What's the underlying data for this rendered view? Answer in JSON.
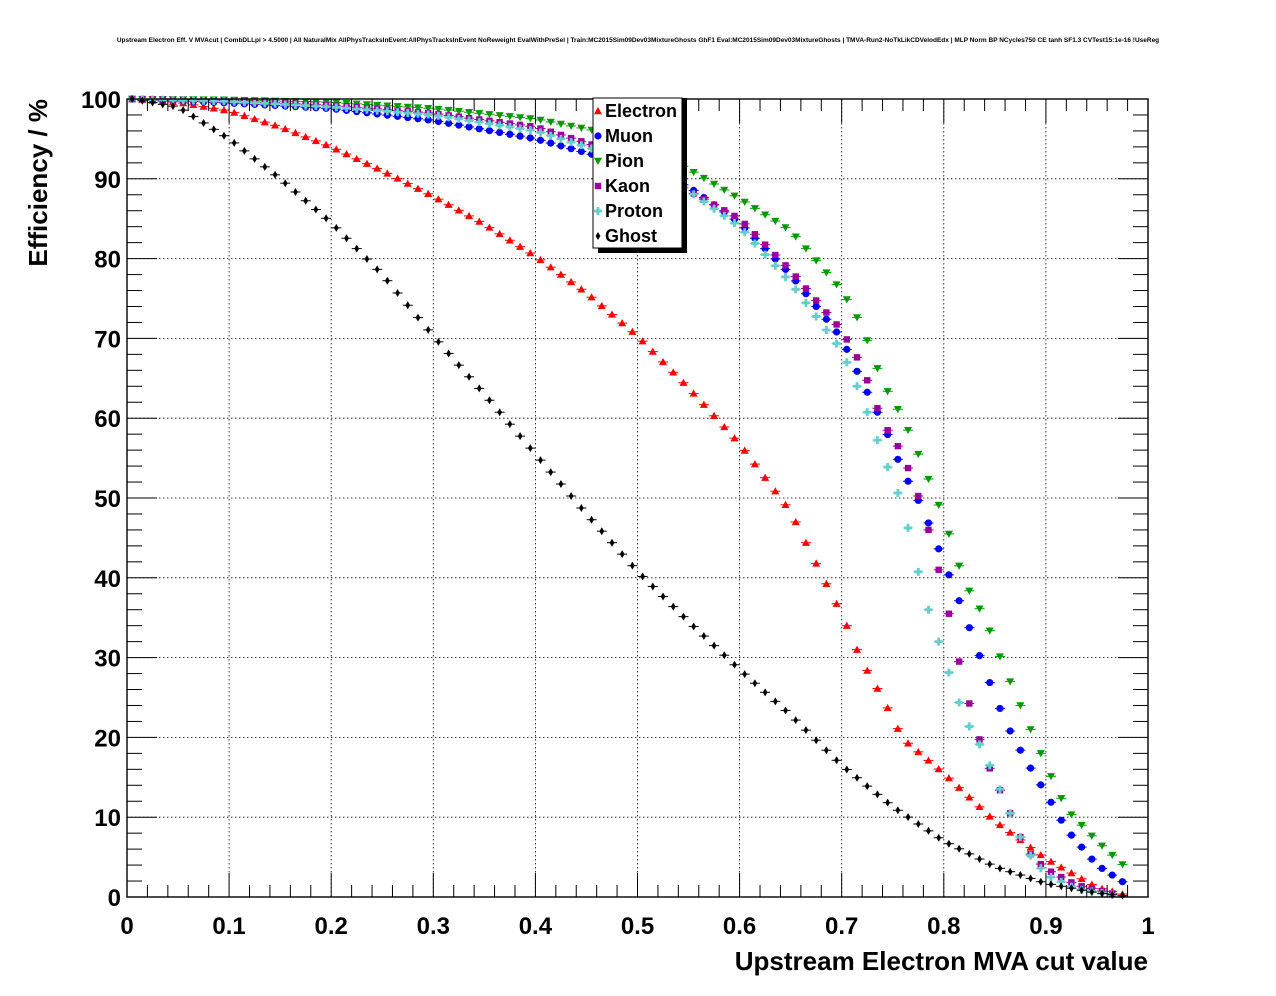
{
  "chart_data": {
    "type": "scatter",
    "title": "Upstream Electron Eff. V MVAcut | CombDLLpi > 4.5000 | All NaturalMix AllPhysTracksInEvent:AllPhysTracksInEvent NoReweight EvalWithPreSel | Train:MC2015Sim09Dev03MixtureGhosts GhF1 Eval:MC2015Sim09Dev03MixtureGhosts | TMVA-Run2-NoTkLikCDVelodEdx | MLP Norm BP NCycles750 CE tanh SF1.3 CVTest15:1e-16 !UseReg",
    "xlabel": "Upstream Electron MVA cut value",
    "ylabel": "Efficiency / %",
    "xlim": [
      0,
      1
    ],
    "ylim": [
      0,
      100
    ],
    "xticks": [
      "0",
      "0.1",
      "0.2",
      "0.3",
      "0.4",
      "0.5",
      "0.6",
      "0.7",
      "0.8",
      "0.9",
      "1"
    ],
    "yticks": [
      "0",
      "10",
      "20",
      "30",
      "40",
      "50",
      "60",
      "70",
      "80",
      "90",
      "100"
    ],
    "grid": true,
    "legend_position": "top-center",
    "series": [
      {
        "name": "Electron",
        "color": "#ff0000",
        "marker": "triangle-up",
        "points": [
          [
            0.005,
            100
          ],
          [
            0.05,
            99.6
          ],
          [
            0.1,
            98.5
          ],
          [
            0.15,
            96.5
          ],
          [
            0.2,
            94
          ],
          [
            0.25,
            91
          ],
          [
            0.3,
            87.8
          ],
          [
            0.35,
            84.3
          ],
          [
            0.4,
            80.3
          ],
          [
            0.45,
            75.7
          ],
          [
            0.5,
            70.3
          ],
          [
            0.55,
            63.8
          ],
          [
            0.6,
            56.8
          ],
          [
            0.65,
            48.3
          ],
          [
            0.68,
            40.5
          ],
          [
            0.7,
            35.5
          ],
          [
            0.72,
            29.5
          ],
          [
            0.74,
            25
          ],
          [
            0.76,
            19.8
          ],
          [
            0.8,
            15.5
          ],
          [
            0.85,
            9.5
          ],
          [
            0.9,
            4.8
          ],
          [
            0.95,
            1.2
          ],
          [
            0.98,
            0.2
          ]
        ]
      },
      {
        "name": "Muon",
        "color": "#0000ff",
        "marker": "circle",
        "points": [
          [
            0.005,
            100
          ],
          [
            0.1,
            99.5
          ],
          [
            0.2,
            98.8
          ],
          [
            0.3,
            97.3
          ],
          [
            0.4,
            95
          ],
          [
            0.5,
            91.5
          ],
          [
            0.55,
            89
          ],
          [
            0.6,
            84.5
          ],
          [
            0.65,
            78
          ],
          [
            0.7,
            70
          ],
          [
            0.72,
            64.5
          ],
          [
            0.74,
            59.5
          ],
          [
            0.76,
            53.3
          ],
          [
            0.78,
            48.5
          ],
          [
            0.8,
            42
          ],
          [
            0.82,
            35.5
          ],
          [
            0.84,
            28.5
          ],
          [
            0.86,
            22
          ],
          [
            0.88,
            17.2
          ],
          [
            0.9,
            13
          ],
          [
            0.92,
            8.5
          ],
          [
            0.95,
            4
          ],
          [
            0.98,
            1.5
          ]
        ]
      },
      {
        "name": "Pion",
        "color": "#009900",
        "marker": "triangle-down",
        "points": [
          [
            0.005,
            100
          ],
          [
            0.1,
            99.9
          ],
          [
            0.2,
            99.6
          ],
          [
            0.3,
            98.8
          ],
          [
            0.4,
            97.5
          ],
          [
            0.5,
            95
          ],
          [
            0.55,
            91.2
          ],
          [
            0.6,
            87.5
          ],
          [
            0.65,
            83.5
          ],
          [
            0.7,
            76
          ],
          [
            0.72,
            71.5
          ],
          [
            0.74,
            64.5
          ],
          [
            0.76,
            60
          ],
          [
            0.78,
            54
          ],
          [
            0.8,
            47.5
          ],
          [
            0.82,
            39.5
          ],
          [
            0.84,
            35
          ],
          [
            0.86,
            28.5
          ],
          [
            0.88,
            22.5
          ],
          [
            0.9,
            16.5
          ],
          [
            0.92,
            11
          ],
          [
            0.95,
            7
          ],
          [
            0.98,
            3.5
          ]
        ]
      },
      {
        "name": "Kaon",
        "color": "#990099",
        "marker": "square",
        "points": [
          [
            0.005,
            100
          ],
          [
            0.1,
            99.8
          ],
          [
            0.2,
            99.2
          ],
          [
            0.3,
            98.2
          ],
          [
            0.4,
            96.5
          ],
          [
            0.5,
            92.5
          ],
          [
            0.55,
            88.5
          ],
          [
            0.6,
            85
          ],
          [
            0.65,
            78.5
          ],
          [
            0.7,
            71
          ],
          [
            0.72,
            66.5
          ],
          [
            0.74,
            59.5
          ],
          [
            0.76,
            55.5
          ],
          [
            0.78,
            48.5
          ],
          [
            0.8,
            38.5
          ],
          [
            0.82,
            26.5
          ],
          [
            0.84,
            17.5
          ],
          [
            0.86,
            12
          ],
          [
            0.88,
            6
          ],
          [
            0.9,
            3.5
          ],
          [
            0.93,
            1.5
          ],
          [
            0.97,
            0.3
          ]
        ]
      },
      {
        "name": "Proton",
        "color": "#66cccc",
        "marker": "plus",
        "points": [
          [
            0.005,
            100
          ],
          [
            0.1,
            99.7
          ],
          [
            0.2,
            99
          ],
          [
            0.3,
            98
          ],
          [
            0.4,
            96
          ],
          [
            0.5,
            92
          ],
          [
            0.55,
            88.5
          ],
          [
            0.6,
            84
          ],
          [
            0.65,
            77
          ],
          [
            0.7,
            68.5
          ],
          [
            0.72,
            62.5
          ],
          [
            0.74,
            55.5
          ],
          [
            0.76,
            49
          ],
          [
            0.78,
            38
          ],
          [
            0.8,
            30
          ],
          [
            0.82,
            22.5
          ],
          [
            0.84,
            18
          ],
          [
            0.86,
            12
          ],
          [
            0.88,
            6
          ],
          [
            0.9,
            2.8
          ],
          [
            0.93,
            1
          ],
          [
            0.97,
            0.2
          ]
        ]
      },
      {
        "name": "Ghost",
        "color": "#000000",
        "marker": "diamond",
        "points": [
          [
            0.005,
            100
          ],
          [
            0.05,
            99
          ],
          [
            0.1,
            95
          ],
          [
            0.15,
            90
          ],
          [
            0.2,
            84.5
          ],
          [
            0.25,
            78
          ],
          [
            0.3,
            70.3
          ],
          [
            0.35,
            63
          ],
          [
            0.4,
            55.5
          ],
          [
            0.45,
            48
          ],
          [
            0.5,
            40.8
          ],
          [
            0.55,
            34.5
          ],
          [
            0.6,
            28.5
          ],
          [
            0.65,
            22.8
          ],
          [
            0.7,
            16.5
          ],
          [
            0.75,
            11.3
          ],
          [
            0.8,
            7
          ],
          [
            0.85,
            3.8
          ],
          [
            0.9,
            1.7
          ],
          [
            0.95,
            0.5
          ],
          [
            0.98,
            0.1
          ]
        ]
      }
    ]
  }
}
